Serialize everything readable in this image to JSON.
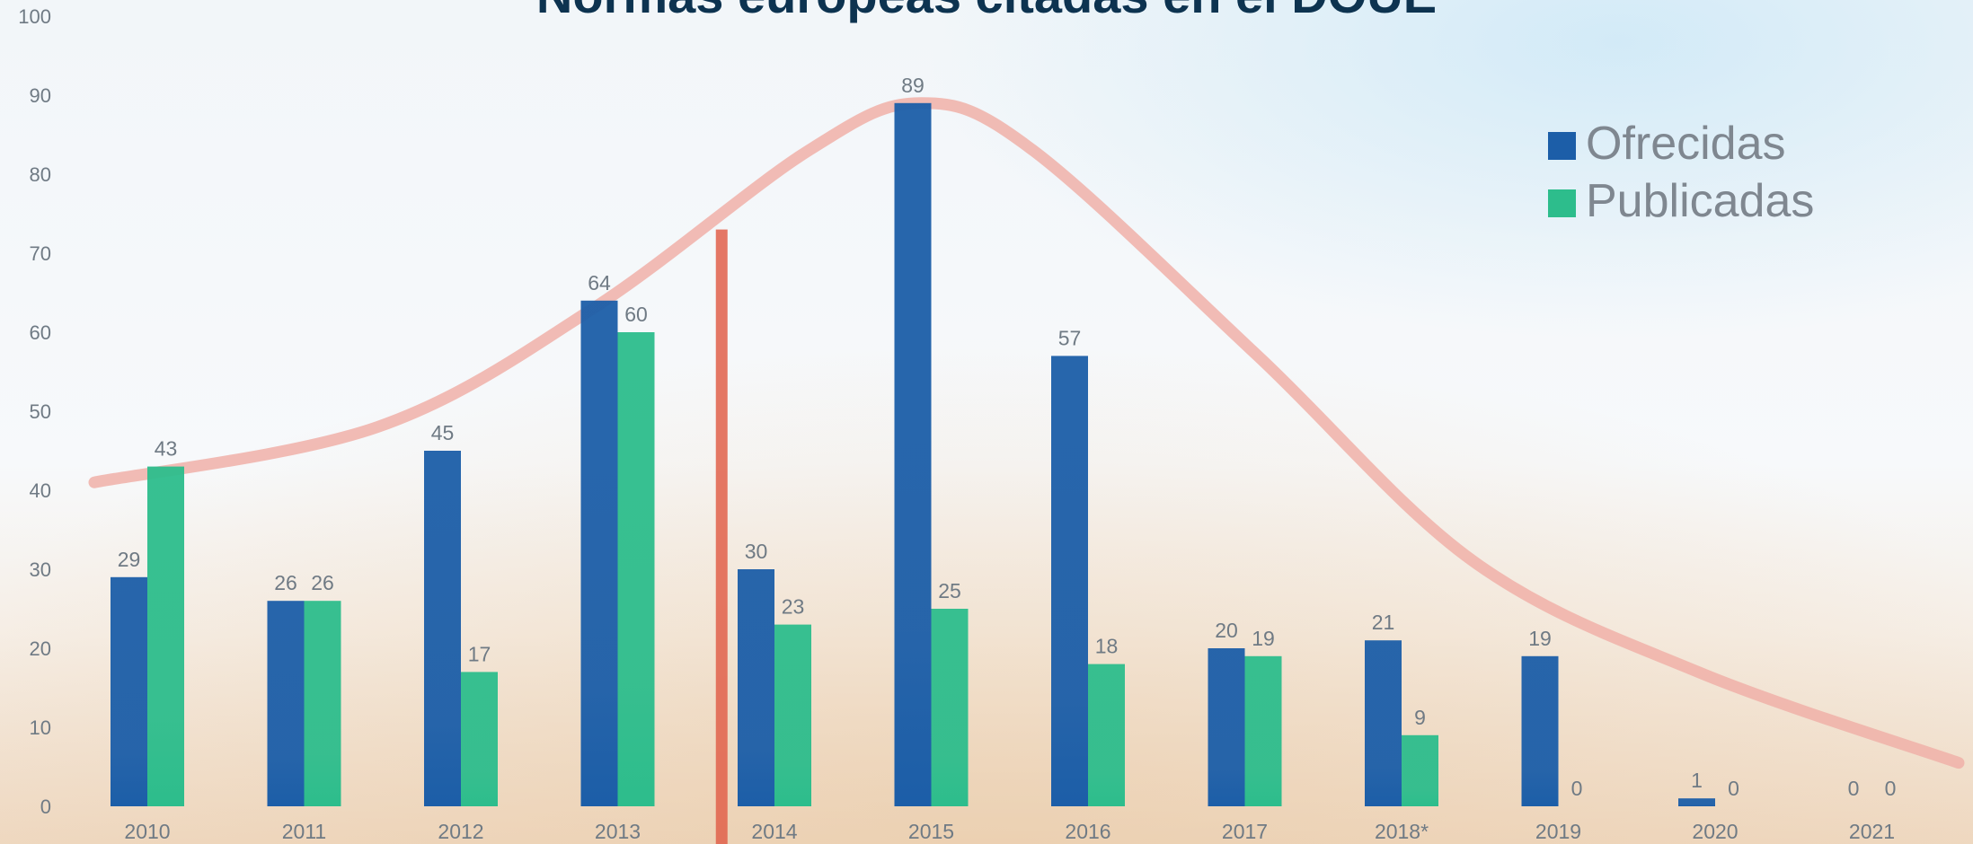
{
  "chart_data": {
    "type": "bar",
    "title": "Normas europeas citadas en el DOUE",
    "categories": [
      "2010",
      "2011",
      "2012",
      "2013",
      "2014",
      "2015",
      "2016",
      "2017",
      "2018*",
      "2019",
      "2020",
      "2021"
    ],
    "series": [
      {
        "name": "Ofrecidas",
        "color": "#1c5ea8",
        "values": [
          29,
          26,
          45,
          64,
          30,
          89,
          57,
          20,
          21,
          19,
          1,
          0
        ]
      },
      {
        "name": "Publicadas",
        "color": "#2dbd8c",
        "values": [
          43,
          26,
          17,
          60,
          23,
          25,
          18,
          19,
          9,
          0,
          0,
          0
        ]
      }
    ],
    "ylim": [
      0,
      100
    ],
    "yticks": [
      0,
      10,
      20,
      30,
      40,
      50,
      60,
      70,
      80,
      90,
      100
    ],
    "legend_position": "top-right",
    "trend_line_color": "#f0b0a8",
    "divider_color": "#e0604a",
    "grid": false
  }
}
